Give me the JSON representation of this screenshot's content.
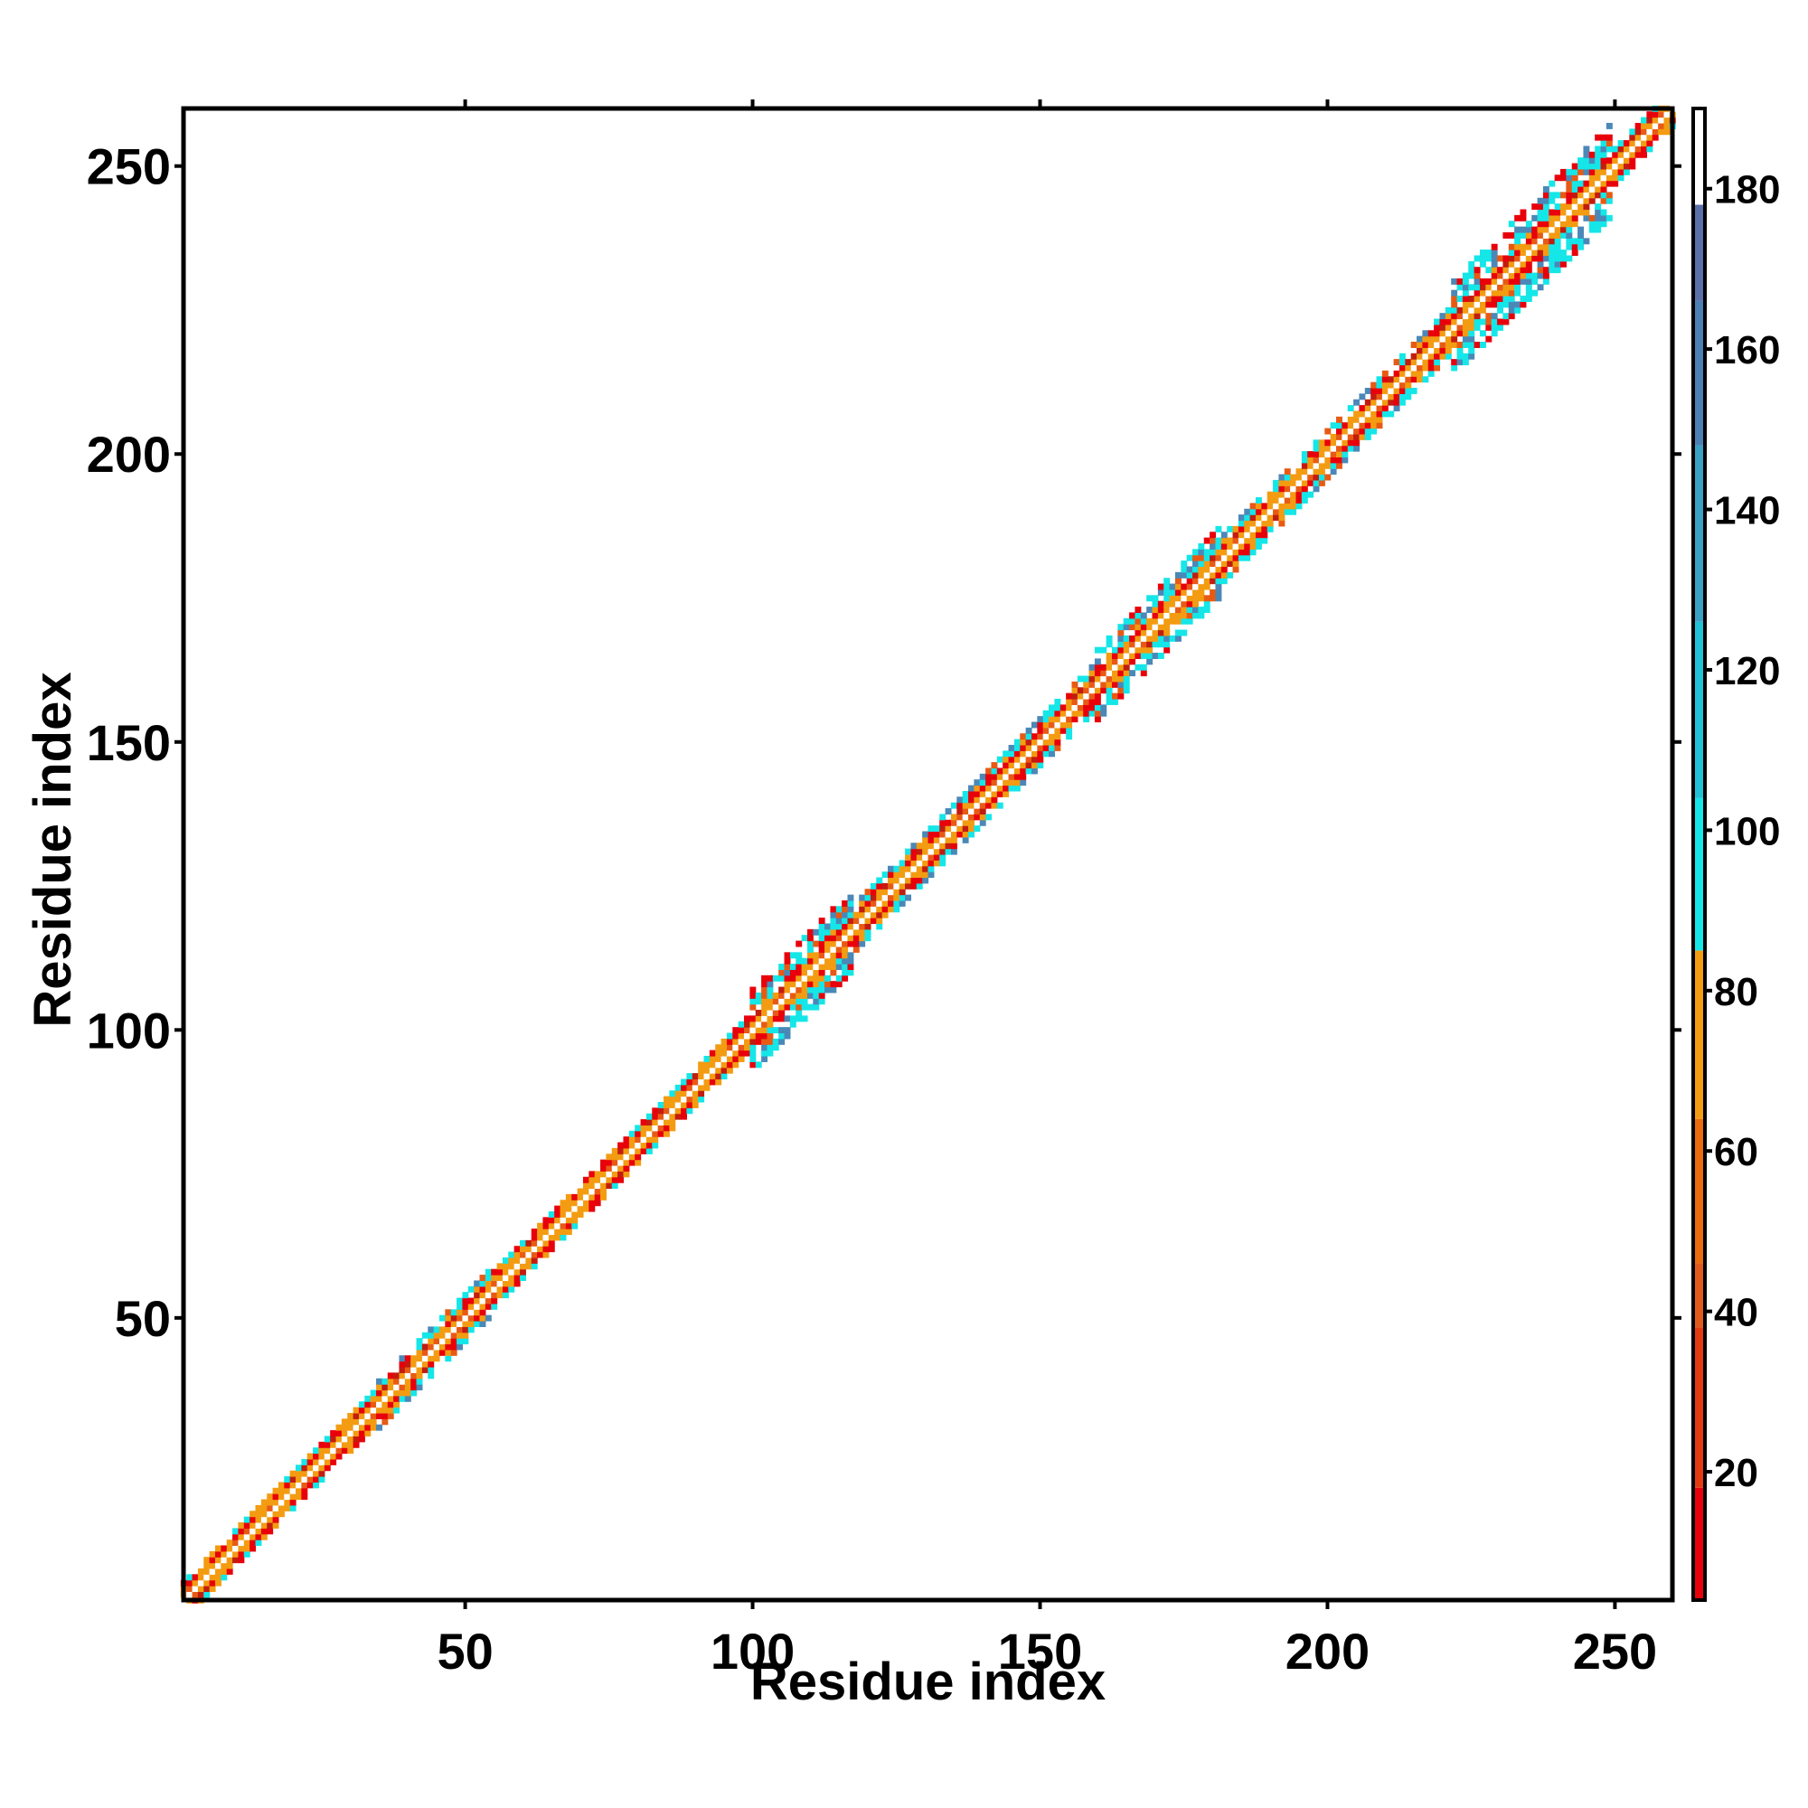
{
  "chart_data": {
    "type": "heatmap",
    "title": "",
    "xlabel": "Residue index",
    "ylabel": "Residue index",
    "xlim": [
      1,
      260
    ],
    "ylim": [
      1,
      260
    ],
    "xticks": [
      50,
      100,
      150,
      200,
      250
    ],
    "yticks": [
      50,
      100,
      150,
      200,
      250
    ],
    "colorbar": {
      "range": [
        4,
        190
      ],
      "ticks": [
        20,
        40,
        60,
        80,
        100,
        120,
        140,
        160,
        180
      ],
      "segments": [
        {
          "from": 4,
          "to": 18,
          "color": "#e8000b"
        },
        {
          "from": 18,
          "to": 38,
          "color": "#e63a12"
        },
        {
          "from": 38,
          "to": 46,
          "color": "#e05a1e"
        },
        {
          "from": 46,
          "to": 64,
          "color": "#ea6a0e"
        },
        {
          "from": 64,
          "to": 85,
          "color": "#f39c12"
        },
        {
          "from": 85,
          "to": 104,
          "color": "#15e6e8"
        },
        {
          "from": 104,
          "to": 126,
          "color": "#22c2d6"
        },
        {
          "from": 126,
          "to": 148,
          "color": "#3aa0c4"
        },
        {
          "from": 148,
          "to": 166,
          "color": "#4a80b4"
        },
        {
          "from": 166,
          "to": 178,
          "color": "#5b6fa8"
        },
        {
          "from": 178,
          "to": 190,
          "color": "#ffffff"
        }
      ]
    },
    "matrix_description": "contact map",
    "band_regions": [
      {
        "from": 1,
        "to": 22,
        "width": 3
      },
      {
        "from": 22,
        "to": 35,
        "width": 3
      },
      {
        "from": 35,
        "to": 55,
        "width": 4
      },
      {
        "from": 55,
        "to": 100,
        "width": 3
      },
      {
        "from": 100,
        "to": 118,
        "width": 7
      },
      {
        "from": 118,
        "to": 160,
        "width": 4
      },
      {
        "from": 160,
        "to": 182,
        "width": 6
      },
      {
        "from": 182,
        "to": 222,
        "width": 4
      },
      {
        "from": 222,
        "to": 250,
        "width": 8
      },
      {
        "from": 250,
        "to": 260,
        "width": 3
      }
    ],
    "palette": {
      "red": "#e8000b",
      "dark_red": "#c21c10",
      "orange_red": "#e85a14",
      "orange": "#f39c12",
      "cyan": "#15e6e8",
      "steel": "#4a88b8",
      "blue": "#5b6fa8"
    }
  }
}
